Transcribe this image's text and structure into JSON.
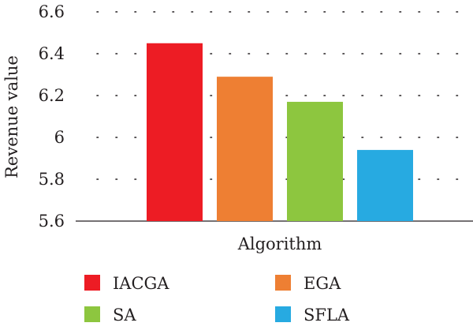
{
  "chart_data": {
    "type": "bar",
    "xlabel": "Algorithm",
    "ylabel": "Revenue value",
    "ylim": [
      5.6,
      6.6
    ],
    "yticks": [
      5.6,
      5.8,
      6,
      6.2,
      6.4,
      6.6
    ],
    "ytick_labels": [
      "5.6",
      "5.8",
      "6",
      "6.2",
      "6.4",
      "6.6"
    ],
    "grid": "horizontal dotted",
    "legend_position": "bottom",
    "series": [
      {
        "name": "IACGA",
        "value": 6.45,
        "color": "#ed1c24"
      },
      {
        "name": "EGA",
        "value": 6.29,
        "color": "#ee7f33"
      },
      {
        "name": "SA",
        "value": 6.17,
        "color": "#8dc63f"
      },
      {
        "name": "SFLA",
        "value": 5.94,
        "color": "#27aae1"
      }
    ]
  }
}
